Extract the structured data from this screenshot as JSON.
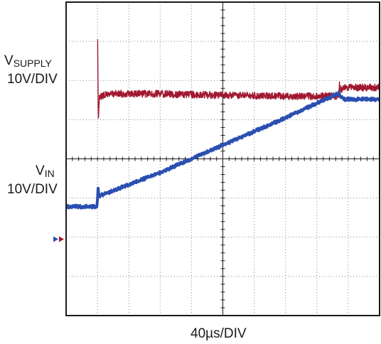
{
  "labels": {
    "supply_main": "V",
    "supply_sub": "SUPPLY",
    "supply_scale": "10V/DIV",
    "vin_main": "V",
    "vin_sub": "IN",
    "vin_scale": "10V/DIV",
    "time_scale": "40µs/DIV"
  },
  "chart_data": {
    "type": "line",
    "xlabel": "40µs/DIV",
    "grid": true,
    "x_divisions": 10,
    "y_divisions": 8,
    "xlim": [
      0,
      10
    ],
    "ylim": [
      -4,
      4
    ],
    "series": [
      {
        "name": "V_SUPPLY",
        "scale": "10V/DIV",
        "color": "#a01830",
        "x": [
          0.0,
          0.98,
          1.0,
          1.02,
          1.03,
          1.06,
          1.1,
          1.3,
          1.6,
          3.0,
          5.0,
          7.0,
          8.7,
          8.72,
          8.74,
          8.76,
          8.78,
          8.9,
          10.0
        ],
        "y": [
          null,
          null,
          3.85,
          1.65,
          1.0,
          1.58,
          1.58,
          1.65,
          1.66,
          1.66,
          1.62,
          1.6,
          1.6,
          1.95,
          1.5,
          1.85,
          1.78,
          1.82,
          1.82
        ]
      },
      {
        "name": "V_IN",
        "scale": "10V/DIV",
        "color": "#2a4fb0",
        "x": [
          0.0,
          0.98,
          1.0,
          1.02,
          1.05,
          3.0,
          5.0,
          7.0,
          8.7,
          8.75,
          8.9,
          10.0
        ],
        "y": [
          -1.22,
          -1.22,
          -1.05,
          -0.75,
          -0.95,
          -0.35,
          0.35,
          1.05,
          1.68,
          1.58,
          1.52,
          1.52
        ]
      }
    ],
    "markers": [
      {
        "side": "left",
        "y": -2.05,
        "colors": [
          "#2a4fb0",
          "#a01830"
        ]
      }
    ]
  }
}
